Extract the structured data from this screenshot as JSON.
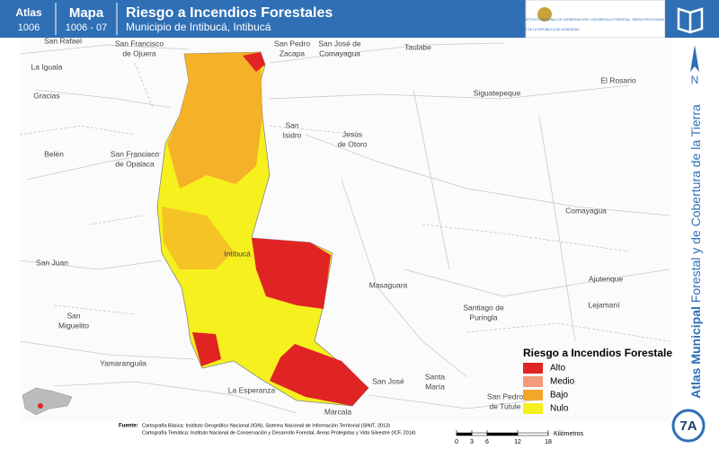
{
  "header": {
    "atlas_label": "Atlas",
    "atlas_number": "1006",
    "map_label": "Mapa",
    "map_number": "1006 - 07",
    "title": "Riesgo a Incendios Forestales",
    "subtitle": "Municipio de Intibucá, Intibucá",
    "logo_left": "GOBIERNO DE LA REPÚBLICA DE HONDURAS",
    "logo_right": "INSTITUTO NACIONAL DE CONSERVACIÓN Y DESARROLLO FORESTAL, ÁREAS PROTEGIDAS Y VIDA SILVESTRE ICF"
  },
  "side": {
    "north": "N",
    "title_bold": "Atlas Municipal",
    "title_rest": "Forestal y de Cobertura de la Tierra",
    "page": "7A"
  },
  "places": [
    {
      "lines": [
        "San Rafael"
      ]
    },
    {
      "lines": [
        "San Francisco",
        "de Ojuera"
      ]
    },
    {
      "lines": [
        "San Pedro",
        "Zacapa"
      ]
    },
    {
      "lines": [
        "San José de",
        "Comayagua"
      ]
    },
    {
      "lines": [
        "Taulabe"
      ]
    },
    {
      "lines": [
        "La Iguala"
      ]
    },
    {
      "lines": [
        "Gracias"
      ]
    },
    {
      "lines": [
        "Siguatepeque"
      ]
    },
    {
      "lines": [
        "El Rosario"
      ]
    },
    {
      "lines": [
        "San",
        "Isidro"
      ]
    },
    {
      "lines": [
        "Belén"
      ]
    },
    {
      "lines": [
        "San Francisco",
        "de Opalaca"
      ]
    },
    {
      "lines": [
        "Jesús",
        "de Otoro"
      ]
    },
    {
      "lines": [
        "Comayagua"
      ]
    },
    {
      "lines": [
        "Intibucá"
      ]
    },
    {
      "lines": [
        "San Juan"
      ]
    },
    {
      "lines": [
        "Masaguara"
      ]
    },
    {
      "lines": [
        "Ajuterique"
      ]
    },
    {
      "lines": [
        "Santiago de",
        "Puringla"
      ]
    },
    {
      "lines": [
        "Lejamaní"
      ]
    },
    {
      "lines": [
        "San",
        "Miguelito"
      ]
    },
    {
      "lines": [
        "Yamaranguila"
      ]
    },
    {
      "lines": [
        "La Esperanza"
      ]
    },
    {
      "lines": [
        "Santa",
        "María"
      ]
    },
    {
      "lines": [
        "San José"
      ]
    },
    {
      "lines": [
        "San Pedro",
        "de Tutule"
      ]
    },
    {
      "lines": [
        "Marcala"
      ]
    }
  ],
  "legend": {
    "title": "Riesgo a Incendios Forestales",
    "items": [
      {
        "label": "Alto",
        "color": "#e02424"
      },
      {
        "label": "Medio",
        "color": "#f59a7a"
      },
      {
        "label": "Bajo",
        "color": "#f4a629"
      },
      {
        "label": "Nulo",
        "color": "#f5f01e"
      }
    ]
  },
  "scale": {
    "ticks": [
      0,
      3,
      6,
      12,
      18
    ],
    "unit": "Kilómetros"
  },
  "source": {
    "label": "Fuente:",
    "line1": "Cartografía Básica: Instituto Geográfico Nacional (IGN), Sistema Nacional de Información Territorial (SINIT, 2013)",
    "line2": "Cartografía Temática: Instituto Nacional de Conservación y Desarrollo Forestal, Áreas Protegidas y Vida Silvestre (ICF, 2014)"
  }
}
